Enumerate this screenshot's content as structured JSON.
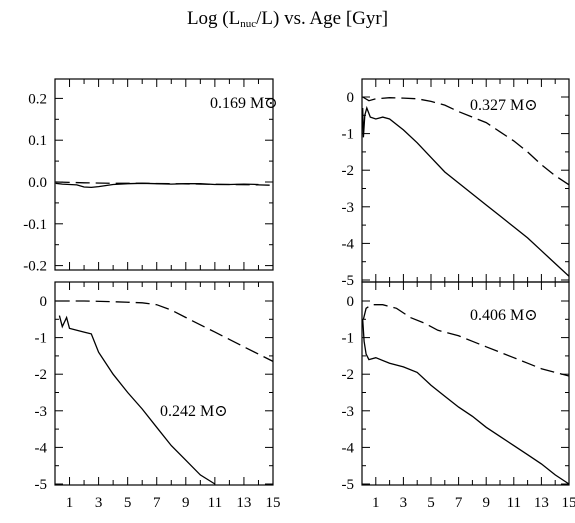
{
  "title": {
    "prefix": "Log (L",
    "sub": "nuc",
    "suffix": "/L) vs. Age [Gyr]"
  },
  "chart_data": [
    {
      "type": "line",
      "panel": "top-left",
      "mass_label": "0.169 M⊙",
      "xlim": [
        0,
        15
      ],
      "ylim": [
        -0.25,
        0.25
      ],
      "yticks": [
        -0.2,
        -0.1,
        0.0,
        0.1,
        0.2
      ],
      "ytick_labels": [
        "-0.2",
        "-0.1",
        "0.0",
        "0.1",
        "0.2"
      ],
      "series": [
        {
          "style": "solid",
          "points": [
            [
              0.05,
              -0.003
            ],
            [
              0.5,
              -0.005
            ],
            [
              1,
              -0.006
            ],
            [
              1.5,
              -0.007
            ],
            [
              2,
              -0.012
            ],
            [
              2.5,
              -0.013
            ],
            [
              3,
              -0.011
            ],
            [
              4,
              -0.006
            ],
            [
              5,
              -0.004
            ],
            [
              6,
              -0.003
            ],
            [
              7,
              -0.004
            ],
            [
              8,
              -0.005
            ],
            [
              9,
              -0.004
            ],
            [
              10,
              -0.004
            ],
            [
              11,
              -0.006
            ],
            [
              12,
              -0.006
            ],
            [
              13,
              -0.005
            ],
            [
              14,
              -0.006
            ]
          ]
        },
        {
          "style": "dashed",
          "points": [
            [
              0.05,
              0.0
            ],
            [
              1,
              -0.001
            ],
            [
              2,
              -0.002
            ],
            [
              4,
              -0.003
            ],
            [
              6,
              -0.003
            ],
            [
              8,
              -0.004
            ],
            [
              10,
              -0.005
            ],
            [
              12,
              -0.006
            ],
            [
              14,
              -0.007
            ],
            [
              15,
              -0.008
            ]
          ]
        }
      ]
    },
    {
      "type": "line",
      "panel": "top-right",
      "mass_label": "0.327 M⊙",
      "xlim": [
        0,
        15
      ],
      "ylim": [
        -5,
        0.4
      ],
      "yticks": [
        -5,
        -4,
        -3,
        -2,
        -1,
        0
      ],
      "ytick_labels": [
        "-5",
        "-4",
        "-3",
        "-2",
        "-1",
        "0"
      ],
      "series": [
        {
          "style": "solid",
          "points": [
            [
              0.05,
              -0.3
            ],
            [
              0.1,
              -1.1
            ],
            [
              0.2,
              -0.5
            ],
            [
              0.35,
              -0.3
            ],
            [
              0.6,
              -0.55
            ],
            [
              1,
              -0.6
            ],
            [
              1.5,
              -0.55
            ],
            [
              2,
              -0.6
            ],
            [
              3,
              -0.9
            ],
            [
              4,
              -1.25
            ],
            [
              5,
              -1.65
            ],
            [
              6,
              -2.05
            ],
            [
              7,
              -2.35
            ],
            [
              8,
              -2.65
            ],
            [
              9,
              -2.95
            ],
            [
              10,
              -3.25
            ],
            [
              11,
              -3.55
            ],
            [
              12,
              -3.85
            ],
            [
              13,
              -4.2
            ],
            [
              14,
              -4.55
            ],
            [
              15,
              -4.9
            ]
          ]
        },
        {
          "style": "dashed",
          "points": [
            [
              0.05,
              0.0
            ],
            [
              0.5,
              -0.1
            ],
            [
              1,
              -0.05
            ],
            [
              2,
              -0.02
            ],
            [
              3,
              -0.03
            ],
            [
              4,
              -0.05
            ],
            [
              5,
              -0.12
            ],
            [
              6,
              -0.22
            ],
            [
              7,
              -0.4
            ],
            [
              8,
              -0.55
            ],
            [
              9,
              -0.7
            ],
            [
              10,
              -0.95
            ],
            [
              11,
              -1.2
            ],
            [
              12,
              -1.5
            ],
            [
              13,
              -1.85
            ],
            [
              14,
              -2.15
            ],
            [
              15,
              -2.4
            ]
          ]
        }
      ]
    },
    {
      "type": "line",
      "panel": "bottom-left",
      "mass_label": "0.242 M⊙",
      "xlim": [
        0,
        15
      ],
      "ylim": [
        -5,
        0.4
      ],
      "yticks": [
        -5,
        -4,
        -3,
        -2,
        -1,
        0
      ],
      "ytick_labels": [
        "-5",
        "-4",
        "-3",
        "-2",
        "-1",
        "0"
      ],
      "xticks": [
        1,
        3,
        5,
        7,
        9,
        11,
        13,
        15
      ],
      "xtick_labels": [
        "1",
        "3",
        "5",
        "7",
        "9",
        "11",
        "13",
        "15"
      ],
      "series": [
        {
          "style": "solid",
          "points": [
            [
              0.3,
              -0.4
            ],
            [
              0.5,
              -0.7
            ],
            [
              0.8,
              -0.45
            ],
            [
              1,
              -0.75
            ],
            [
              1.5,
              -0.8
            ],
            [
              2,
              -0.85
            ],
            [
              2.5,
              -0.9
            ],
            [
              3,
              -1.4
            ],
            [
              4,
              -2.0
            ],
            [
              5,
              -2.5
            ],
            [
              6,
              -2.95
            ],
            [
              7,
              -3.45
            ],
            [
              8,
              -3.95
            ],
            [
              9,
              -4.35
            ],
            [
              10,
              -4.75
            ],
            [
              11,
              -5.0
            ]
          ]
        },
        {
          "style": "dashed",
          "points": [
            [
              0.05,
              0.0
            ],
            [
              2,
              0.0
            ],
            [
              4,
              -0.02
            ],
            [
              6,
              -0.05
            ],
            [
              7,
              -0.1
            ],
            [
              8,
              -0.25
            ],
            [
              9,
              -0.45
            ],
            [
              10,
              -0.65
            ],
            [
              11,
              -0.85
            ],
            [
              12,
              -1.05
            ],
            [
              13,
              -1.25
            ],
            [
              14,
              -1.45
            ],
            [
              15,
              -1.65
            ]
          ]
        }
      ]
    },
    {
      "type": "line",
      "panel": "bottom-right",
      "mass_label": "0.406 M⊙",
      "xlim": [
        0,
        15
      ],
      "ylim": [
        -5,
        0.4
      ],
      "yticks": [
        -5,
        -4,
        -3,
        -2,
        -1,
        0
      ],
      "ytick_labels": [
        "-5",
        "-4",
        "-3",
        "-2",
        "-1",
        "0"
      ],
      "xticks": [
        1,
        3,
        5,
        7,
        9,
        11,
        13,
        15
      ],
      "xtick_labels": [
        "1",
        "3",
        "5",
        "7",
        "9",
        "11",
        "13",
        "15"
      ],
      "series": [
        {
          "style": "solid",
          "points": [
            [
              0.05,
              -0.5
            ],
            [
              0.15,
              -1.1
            ],
            [
              0.3,
              -1.45
            ],
            [
              0.5,
              -1.6
            ],
            [
              1,
              -1.55
            ],
            [
              2,
              -1.7
            ],
            [
              3,
              -1.8
            ],
            [
              4,
              -1.95
            ],
            [
              5,
              -2.3
            ],
            [
              6,
              -2.6
            ],
            [
              7,
              -2.9
            ],
            [
              8,
              -3.15
            ],
            [
              9,
              -3.45
            ],
            [
              10,
              -3.7
            ],
            [
              11,
              -3.95
            ],
            [
              12,
              -4.2
            ],
            [
              13,
              -4.45
            ],
            [
              14,
              -4.75
            ],
            [
              15,
              -5.0
            ]
          ]
        },
        {
          "style": "dashed",
          "points": [
            [
              0.1,
              -0.5
            ],
            [
              0.3,
              -0.2
            ],
            [
              0.7,
              -0.1
            ],
            [
              1.5,
              -0.1
            ],
            [
              2.5,
              -0.2
            ],
            [
              3.5,
              -0.45
            ],
            [
              4.5,
              -0.6
            ],
            [
              5.5,
              -0.8
            ],
            [
              7,
              -0.95
            ],
            [
              8,
              -1.1
            ],
            [
              9,
              -1.25
            ],
            [
              10,
              -1.4
            ],
            [
              11,
              -1.55
            ],
            [
              12,
              -1.7
            ],
            [
              13,
              -1.85
            ],
            [
              14,
              -1.95
            ],
            [
              15,
              -2.05
            ]
          ]
        }
      ]
    }
  ]
}
